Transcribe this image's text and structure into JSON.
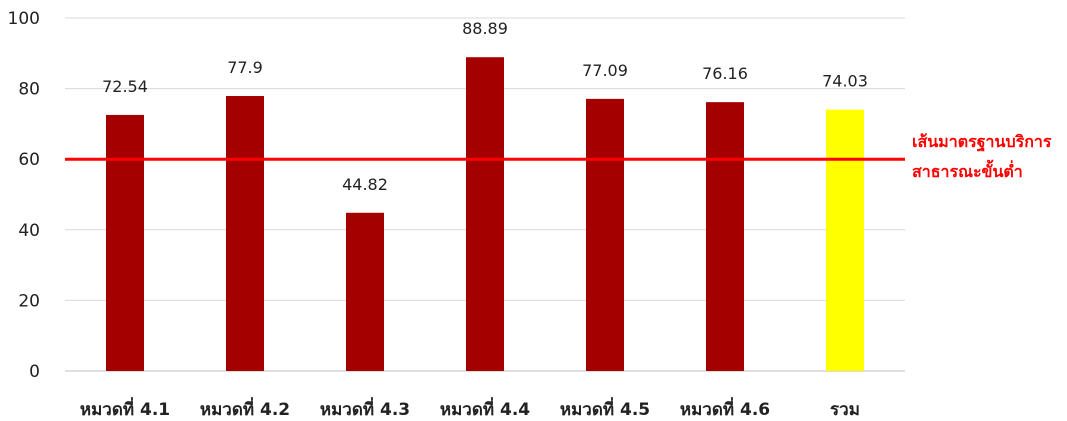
{
  "chart_data": {
    "type": "bar",
    "categories": [
      "หมวดที่ 4.1",
      "หมวดที่ 4.2",
      "หมวดที่ 4.3",
      "หมวดที่ 4.4",
      "หมวดที่ 4.5",
      "หมวดที่ 4.6",
      "รวม"
    ],
    "values": [
      72.54,
      77.9,
      44.82,
      88.89,
      77.09,
      76.16,
      74.03
    ],
    "value_labels": [
      "72.54",
      "77.9",
      "44.82",
      "88.89",
      "77.09",
      "76.16",
      "74.03"
    ],
    "bar_colors": [
      "#a50000",
      "#a50000",
      "#a50000",
      "#a50000",
      "#a50000",
      "#a50000",
      "#ffff00"
    ],
    "ylim": [
      0,
      100
    ],
    "yticks": [
      0,
      20,
      40,
      60,
      80,
      100
    ],
    "grid": true,
    "reference_line": {
      "value": 60,
      "color": "#ff0000",
      "label_lines": [
        "เส้นมาตรฐานบริการ",
        "สาธารณะขั้นต่ำ"
      ]
    },
    "title": "",
    "xlabel": "",
    "ylabel": ""
  }
}
